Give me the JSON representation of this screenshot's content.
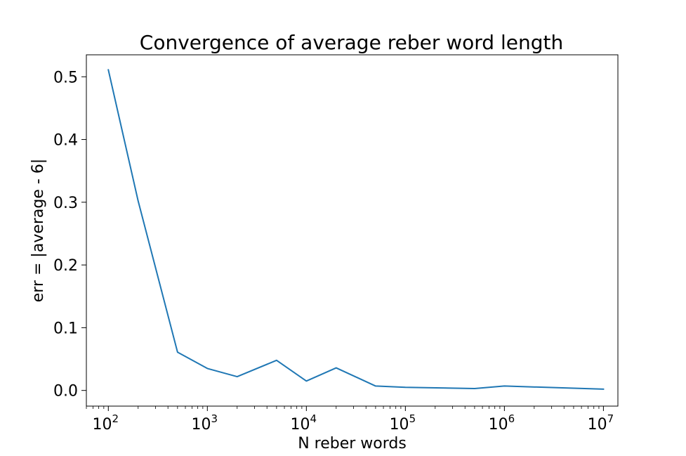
{
  "chart_data": {
    "type": "line",
    "title": "Convergence of average reber word length",
    "xlabel": "N reber words",
    "ylabel": "err = |average - 6|",
    "x_scale": "log",
    "xlim": [
      60,
      14000000
    ],
    "ylim": [
      -0.025,
      0.535
    ],
    "grid": false,
    "series_color": "#1f77b4",
    "x_ticks": [
      {
        "base": "10",
        "exp": "2",
        "value": 100
      },
      {
        "base": "10",
        "exp": "3",
        "value": 1000
      },
      {
        "base": "10",
        "exp": "4",
        "value": 10000
      },
      {
        "base": "10",
        "exp": "5",
        "value": 100000
      },
      {
        "base": "10",
        "exp": "6",
        "value": 1000000
      },
      {
        "base": "10",
        "exp": "7",
        "value": 10000000
      }
    ],
    "y_ticks": [
      {
        "label": "0.0",
        "value": 0.0
      },
      {
        "label": "0.1",
        "value": 0.1
      },
      {
        "label": "0.2",
        "value": 0.2
      },
      {
        "label": "0.3",
        "value": 0.3
      },
      {
        "label": "0.4",
        "value": 0.4
      },
      {
        "label": "0.5",
        "value": 0.5
      }
    ],
    "series": [
      {
        "x": [
          100,
          200,
          500,
          1000,
          2000,
          5000,
          10000,
          20000,
          50000,
          100000,
          500000,
          1000000,
          10000000
        ],
        "y": [
          0.511,
          0.302,
          0.061,
          0.035,
          0.022,
          0.048,
          0.015,
          0.036,
          0.007,
          0.005,
          0.003,
          0.007,
          0.002
        ]
      }
    ]
  }
}
